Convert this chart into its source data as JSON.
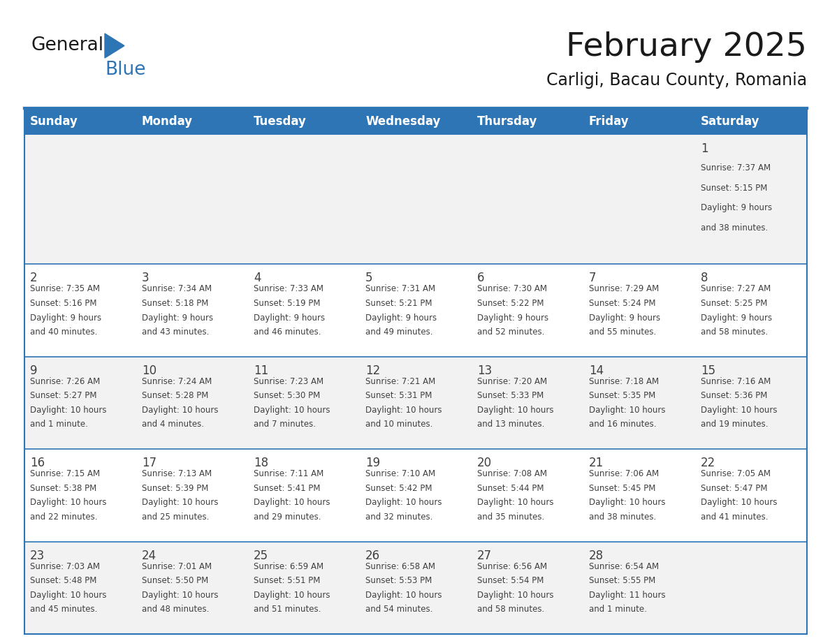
{
  "title": "February 2025",
  "subtitle": "Carligi, Bacau County, Romania",
  "header_bg": "#2E75B6",
  "header_text_color": "#FFFFFF",
  "cell_bg_odd": "#F2F2F2",
  "cell_bg_even": "#FFFFFF",
  "divider_color": "#2E75B6",
  "text_color": "#404040",
  "day_number_color": "#404040",
  "day_headers": [
    "Sunday",
    "Monday",
    "Tuesday",
    "Wednesday",
    "Thursday",
    "Friday",
    "Saturday"
  ],
  "calendar_data": [
    [
      {
        "day": null,
        "sunrise": null,
        "sunset": null,
        "daylight": null
      },
      {
        "day": null,
        "sunrise": null,
        "sunset": null,
        "daylight": null
      },
      {
        "day": null,
        "sunrise": null,
        "sunset": null,
        "daylight": null
      },
      {
        "day": null,
        "sunrise": null,
        "sunset": null,
        "daylight": null
      },
      {
        "day": null,
        "sunrise": null,
        "sunset": null,
        "daylight": null
      },
      {
        "day": null,
        "sunrise": null,
        "sunset": null,
        "daylight": null
      },
      {
        "day": "1",
        "sunrise": "Sunrise: 7:37 AM",
        "sunset": "Sunset: 5:15 PM",
        "daylight": "Daylight: 9 hours\nand 38 minutes."
      }
    ],
    [
      {
        "day": "2",
        "sunrise": "Sunrise: 7:35 AM",
        "sunset": "Sunset: 5:16 PM",
        "daylight": "Daylight: 9 hours\nand 40 minutes."
      },
      {
        "day": "3",
        "sunrise": "Sunrise: 7:34 AM",
        "sunset": "Sunset: 5:18 PM",
        "daylight": "Daylight: 9 hours\nand 43 minutes."
      },
      {
        "day": "4",
        "sunrise": "Sunrise: 7:33 AM",
        "sunset": "Sunset: 5:19 PM",
        "daylight": "Daylight: 9 hours\nand 46 minutes."
      },
      {
        "day": "5",
        "sunrise": "Sunrise: 7:31 AM",
        "sunset": "Sunset: 5:21 PM",
        "daylight": "Daylight: 9 hours\nand 49 minutes."
      },
      {
        "day": "6",
        "sunrise": "Sunrise: 7:30 AM",
        "sunset": "Sunset: 5:22 PM",
        "daylight": "Daylight: 9 hours\nand 52 minutes."
      },
      {
        "day": "7",
        "sunrise": "Sunrise: 7:29 AM",
        "sunset": "Sunset: 5:24 PM",
        "daylight": "Daylight: 9 hours\nand 55 minutes."
      },
      {
        "day": "8",
        "sunrise": "Sunrise: 7:27 AM",
        "sunset": "Sunset: 5:25 PM",
        "daylight": "Daylight: 9 hours\nand 58 minutes."
      }
    ],
    [
      {
        "day": "9",
        "sunrise": "Sunrise: 7:26 AM",
        "sunset": "Sunset: 5:27 PM",
        "daylight": "Daylight: 10 hours\nand 1 minute."
      },
      {
        "day": "10",
        "sunrise": "Sunrise: 7:24 AM",
        "sunset": "Sunset: 5:28 PM",
        "daylight": "Daylight: 10 hours\nand 4 minutes."
      },
      {
        "day": "11",
        "sunrise": "Sunrise: 7:23 AM",
        "sunset": "Sunset: 5:30 PM",
        "daylight": "Daylight: 10 hours\nand 7 minutes."
      },
      {
        "day": "12",
        "sunrise": "Sunrise: 7:21 AM",
        "sunset": "Sunset: 5:31 PM",
        "daylight": "Daylight: 10 hours\nand 10 minutes."
      },
      {
        "day": "13",
        "sunrise": "Sunrise: 7:20 AM",
        "sunset": "Sunset: 5:33 PM",
        "daylight": "Daylight: 10 hours\nand 13 minutes."
      },
      {
        "day": "14",
        "sunrise": "Sunrise: 7:18 AM",
        "sunset": "Sunset: 5:35 PM",
        "daylight": "Daylight: 10 hours\nand 16 minutes."
      },
      {
        "day": "15",
        "sunrise": "Sunrise: 7:16 AM",
        "sunset": "Sunset: 5:36 PM",
        "daylight": "Daylight: 10 hours\nand 19 minutes."
      }
    ],
    [
      {
        "day": "16",
        "sunrise": "Sunrise: 7:15 AM",
        "sunset": "Sunset: 5:38 PM",
        "daylight": "Daylight: 10 hours\nand 22 minutes."
      },
      {
        "day": "17",
        "sunrise": "Sunrise: 7:13 AM",
        "sunset": "Sunset: 5:39 PM",
        "daylight": "Daylight: 10 hours\nand 25 minutes."
      },
      {
        "day": "18",
        "sunrise": "Sunrise: 7:11 AM",
        "sunset": "Sunset: 5:41 PM",
        "daylight": "Daylight: 10 hours\nand 29 minutes."
      },
      {
        "day": "19",
        "sunrise": "Sunrise: 7:10 AM",
        "sunset": "Sunset: 5:42 PM",
        "daylight": "Daylight: 10 hours\nand 32 minutes."
      },
      {
        "day": "20",
        "sunrise": "Sunrise: 7:08 AM",
        "sunset": "Sunset: 5:44 PM",
        "daylight": "Daylight: 10 hours\nand 35 minutes."
      },
      {
        "day": "21",
        "sunrise": "Sunrise: 7:06 AM",
        "sunset": "Sunset: 5:45 PM",
        "daylight": "Daylight: 10 hours\nand 38 minutes."
      },
      {
        "day": "22",
        "sunrise": "Sunrise: 7:05 AM",
        "sunset": "Sunset: 5:47 PM",
        "daylight": "Daylight: 10 hours\nand 41 minutes."
      }
    ],
    [
      {
        "day": "23",
        "sunrise": "Sunrise: 7:03 AM",
        "sunset": "Sunset: 5:48 PM",
        "daylight": "Daylight: 10 hours\nand 45 minutes."
      },
      {
        "day": "24",
        "sunrise": "Sunrise: 7:01 AM",
        "sunset": "Sunset: 5:50 PM",
        "daylight": "Daylight: 10 hours\nand 48 minutes."
      },
      {
        "day": "25",
        "sunrise": "Sunrise: 6:59 AM",
        "sunset": "Sunset: 5:51 PM",
        "daylight": "Daylight: 10 hours\nand 51 minutes."
      },
      {
        "day": "26",
        "sunrise": "Sunrise: 6:58 AM",
        "sunset": "Sunset: 5:53 PM",
        "daylight": "Daylight: 10 hours\nand 54 minutes."
      },
      {
        "day": "27",
        "sunrise": "Sunrise: 6:56 AM",
        "sunset": "Sunset: 5:54 PM",
        "daylight": "Daylight: 10 hours\nand 58 minutes."
      },
      {
        "day": "28",
        "sunrise": "Sunrise: 6:54 AM",
        "sunset": "Sunset: 5:55 PM",
        "daylight": "Daylight: 11 hours\nand 1 minute."
      },
      {
        "day": null,
        "sunrise": null,
        "sunset": null,
        "daylight": null
      }
    ]
  ],
  "title_fontsize": 34,
  "subtitle_fontsize": 17,
  "header_fontsize": 12,
  "day_number_fontsize": 12,
  "cell_text_fontsize": 8.5,
  "logo_general_fontsize": 19,
  "logo_blue_fontsize": 19
}
